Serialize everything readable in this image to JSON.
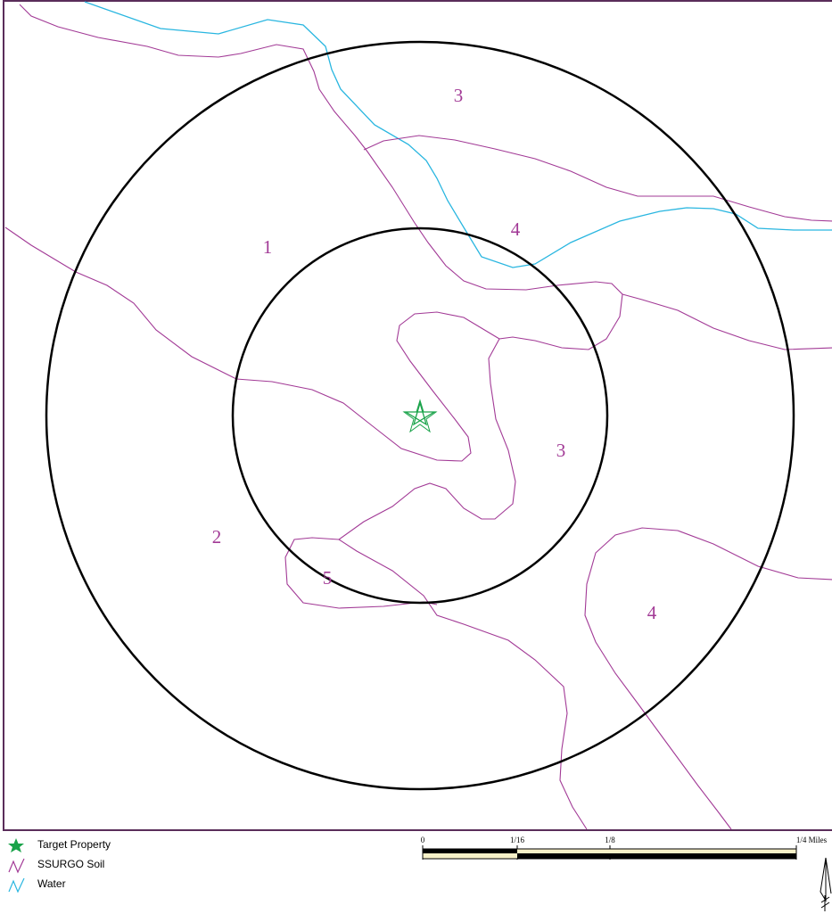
{
  "legend": {
    "items": [
      {
        "label": "Target Property",
        "icon": "star-icon",
        "color": "#1aa34a"
      },
      {
        "label": "SSURGO Soil",
        "icon": "soil-line-icon",
        "color": "#a23a96"
      },
      {
        "label": "Water",
        "icon": "water-line-icon",
        "color": "#29b6e0"
      }
    ]
  },
  "scale_bar": {
    "ticks": [
      "0",
      "1/16",
      "1/8",
      "1/4 Miles"
    ]
  },
  "soil_units": [
    "1",
    "2",
    "3",
    "3",
    "4",
    "4",
    "5"
  ],
  "colors": {
    "frame": "#5a2d5a",
    "soil_line": "#a23a96",
    "water_line": "#29b6e0",
    "buffer_ring": "#000000",
    "target": "#1aa34a",
    "scale_fill": "#f7f1c8"
  }
}
